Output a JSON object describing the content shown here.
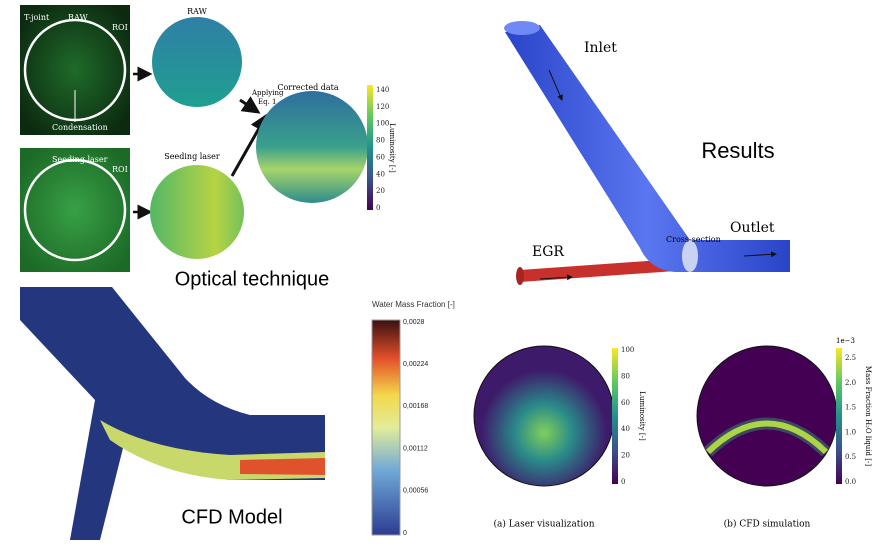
{
  "optical": {
    "raw_image": {
      "labels": [
        "T-joint",
        "RAW",
        "ROI",
        "Condensation"
      ]
    },
    "laser_image": {
      "labels": [
        "Seeding laser",
        "ROI"
      ]
    },
    "raw_circle": "RAW",
    "seeding_circle": "Seeding laser",
    "applying": [
      "Applying",
      "Eq. 1"
    ],
    "corrected": "Corrected data",
    "colorbar": {
      "ticks": [
        "0",
        "20",
        "40",
        "60",
        "80",
        "100",
        "120",
        "140"
      ],
      "label": "Luminosity [-]"
    },
    "title": "Optical technique"
  },
  "results": {
    "inlet": "Inlet",
    "title": "Results",
    "egr": "EGR",
    "cross_section": "Cross-section",
    "outlet": "Outlet"
  },
  "cfd": {
    "colorbar": {
      "title": "Water Mass Fraction [-]",
      "ticks": [
        "0",
        "0,00056",
        "0,00112",
        "0,00168",
        "0,00224",
        "0,0028"
      ]
    },
    "title": "CFD Model"
  },
  "comparison": {
    "a": {
      "colorbar": {
        "ticks": [
          "0",
          "20",
          "40",
          "60",
          "80",
          "100"
        ],
        "label": "Luminosity [-]"
      },
      "caption": "(a) Laser visualization"
    },
    "b": {
      "colorbar": {
        "exponent": "1e−3",
        "ticks": [
          "0.0",
          "0.5",
          "1.0",
          "1.5",
          "2.0",
          "2.5"
        ],
        "label": "Mass Fraction H₂O liquid [-]"
      },
      "caption": "(b) CFD simulation"
    }
  }
}
